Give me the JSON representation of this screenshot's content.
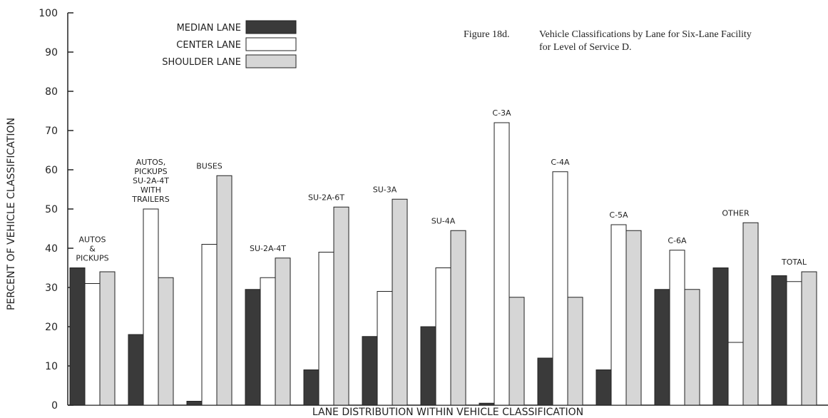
{
  "chart_data": {
    "type": "bar",
    "figure_label": "Figure 18d.",
    "title": "Vehicle Classifications by Lane for Six-Lane Facility\nfor Level of Service D.",
    "xlabel": "LANE  DISTRIBUTION  WITHIN  VEHICLE  CLASSIFICATION",
    "ylabel": "PERCENT  OF  VEHICLE  CLASSIFICATION",
    "categories": [
      "AUTOS\n&\nPICKUPS",
      "AUTOS,\nPICKUPS\nSU-2A-4T\nWITH\nTRAILERS",
      "BUSES",
      "SU-2A-4T",
      "SU-2A-6T",
      "SU-3A",
      "SU-4A",
      "C-3A",
      "C-4A",
      "C-5A",
      "C-6A",
      "OTHER",
      "TOTAL"
    ],
    "series": [
      {
        "name": "MEDIAN LANE",
        "color": "#3a3a3a",
        "values": [
          35,
          18,
          1,
          29.5,
          9,
          17.5,
          20,
          0.5,
          12,
          9,
          29.5,
          35,
          33
        ]
      },
      {
        "name": "CENTER LANE",
        "color": "#ffffff",
        "values": [
          31,
          50,
          41,
          32.5,
          39,
          29,
          35,
          72,
          59.5,
          46,
          39.5,
          16,
          31.5
        ]
      },
      {
        "name": "SHOULDER LANE",
        "color": "#d6d6d6",
        "values": [
          34,
          32.5,
          58.5,
          37.5,
          50.5,
          52.5,
          44.5,
          27.5,
          27.5,
          44.5,
          29.5,
          46.5,
          34
        ]
      }
    ],
    "ylim": [
      0,
      100
    ],
    "yticks": [
      0,
      10,
      20,
      30,
      40,
      50,
      60,
      70,
      80,
      90,
      100
    ],
    "legend": "upper left"
  }
}
